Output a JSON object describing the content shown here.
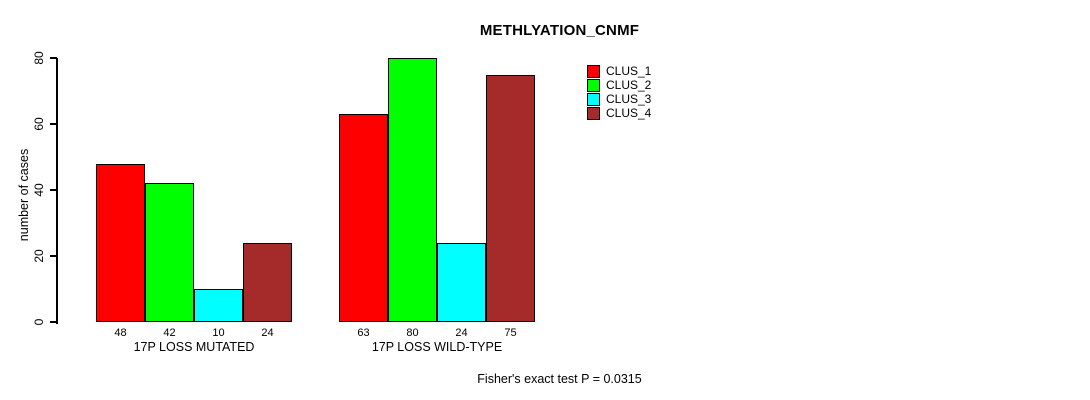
{
  "title": "METHLYATION_CNMF",
  "footer": "Fisher's exact test P = 0.0315",
  "chart_data": {
    "type": "bar",
    "title": "METHLYATION_CNMF",
    "xlabel": "",
    "ylabel": "number of cases",
    "ylim": [
      0,
      80
    ],
    "yticks": [
      0,
      20,
      40,
      60,
      80
    ],
    "grid": false,
    "bar_value_labels_shown": true,
    "legend_position": "top-right",
    "annotation": "Fisher's exact test P = 0.0315",
    "categories": [
      "17P LOSS MUTATED",
      "17P LOSS WILD-TYPE"
    ],
    "series": [
      {
        "name": "CLUS_1",
        "color": "#ff0000",
        "values": [
          48,
          63
        ]
      },
      {
        "name": "CLUS_2",
        "color": "#00ff00",
        "values": [
          42,
          80
        ]
      },
      {
        "name": "CLUS_3",
        "color": "#00ffff",
        "values": [
          10,
          24
        ]
      },
      {
        "name": "CLUS_4",
        "color": "#a52a2a",
        "values": [
          24,
          75
        ]
      }
    ]
  }
}
